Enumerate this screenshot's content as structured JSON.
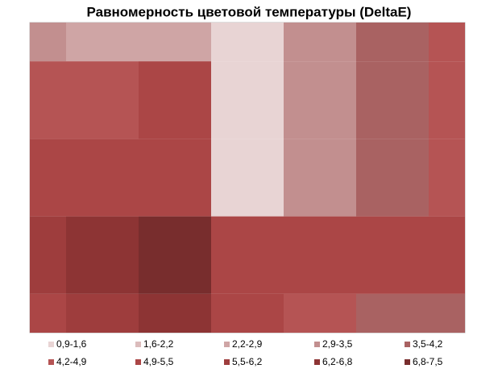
{
  "chart_data": {
    "type": "contour",
    "title": "Равномерность цветовой температуры (DeltaE)",
    "bands": [
      {
        "name": "0,9-1,6",
        "color": "#e8d4d4"
      },
      {
        "name": "1,6-2,2",
        "color": "#dbbcbc"
      },
      {
        "name": "2,2-2,9",
        "color": "#cfa5a5"
      },
      {
        "name": "2,9-3,5",
        "color": "#c28f8f"
      },
      {
        "name": "3,5-4,2",
        "color": "#a96262"
      },
      {
        "name": "4,2-4,9",
        "color": "#b55454"
      },
      {
        "name": "4,9-5,5",
        "color": "#ab4646"
      },
      {
        "name": "5,5-6,2",
        "color": "#9e3d3d"
      },
      {
        "name": "6,2-6,8",
        "color": "#8d3434"
      },
      {
        "name": "6,8-7,5",
        "color": "#782d2d"
      }
    ],
    "z": [
      [
        3.5,
        2.5,
        2.5,
        1.6,
        3.0,
        4.0,
        4.5
      ],
      [
        4.5,
        4.5,
        5.0,
        1.5,
        3.0,
        4.0,
        4.5
      ],
      [
        5.5,
        5.5,
        5.0,
        1.0,
        3.3,
        4.0,
        4.5
      ],
      [
        6.0,
        6.8,
        7.0,
        5.5,
        5.5,
        5.4,
        5.0
      ],
      [
        5.5,
        6.0,
        6.5,
        5.0,
        4.5,
        4.0,
        3.8
      ]
    ]
  }
}
